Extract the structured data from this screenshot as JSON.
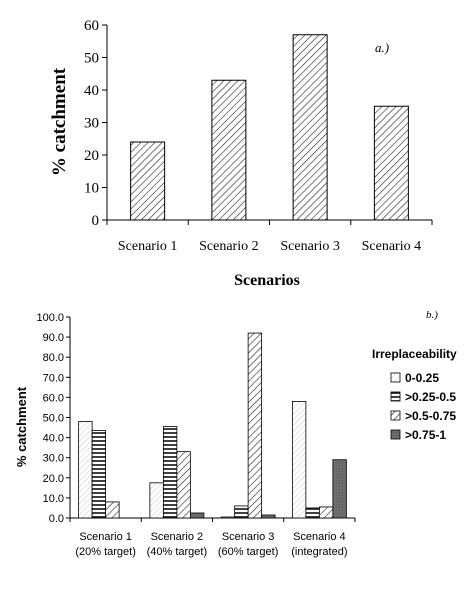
{
  "chart_data": [
    {
      "type": "bar",
      "title": "",
      "panel_label": "a.)",
      "xlabel": "Scenarios",
      "ylabel": "% catchment",
      "ylim": [
        0,
        60
      ],
      "yticks": [
        "0",
        "10",
        "20",
        "30",
        "40",
        "50",
        "60"
      ],
      "categories": [
        "Scenario 1",
        "Scenario 2",
        "Scenario 3",
        "Scenario 4"
      ],
      "values": [
        24,
        43,
        57,
        35
      ],
      "grid": false,
      "legend": "none"
    },
    {
      "type": "bar",
      "title": "",
      "panel_label": "b.)",
      "xlabel": "",
      "ylabel": "% catchment",
      "ylim": [
        0,
        100
      ],
      "yticks": [
        "0.0",
        "10.0",
        "20.0",
        "30.0",
        "40.0",
        "50.0",
        "60.0",
        "70.0",
        "80.0",
        "90.0",
        "100.0"
      ],
      "categories": [
        [
          "Scenario 1",
          "(20% target)"
        ],
        [
          "Scenario 2",
          "(40% target)"
        ],
        [
          "Scenario 3",
          "(60% target)"
        ],
        [
          "Scenario 4",
          "(integrated)"
        ]
      ],
      "legend_title": "Irreplaceability",
      "legend": "right",
      "grid": false,
      "series": [
        {
          "name": "0-0.25",
          "values": [
            48,
            17.5,
            0.5,
            58
          ]
        },
        {
          "name": ">0.25-0.5",
          "values": [
            43.5,
            45.5,
            6,
            5
          ]
        },
        {
          "name": ">0.5-0.75",
          "values": [
            8,
            33,
            92,
            5.5
          ]
        },
        {
          "name": ">0.75-1",
          "values": [
            0,
            2.5,
            1.5,
            29
          ]
        }
      ]
    }
  ]
}
